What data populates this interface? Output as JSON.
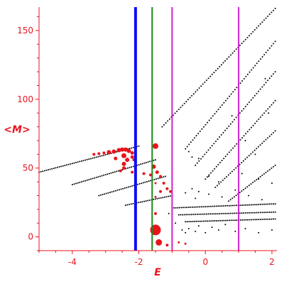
{
  "chart_data": {
    "type": "scatter",
    "xlabel": "E",
    "ylabel": "<M>",
    "xlim": [
      -5.0,
      2.15
    ],
    "ylim": [
      -10,
      167
    ],
    "x_ticks": [
      {
        "value": -4,
        "label": "-4"
      },
      {
        "value": -2,
        "label": "-2"
      },
      {
        "value": 0,
        "label": "0"
      },
      {
        "value": 2,
        "label": "2"
      }
    ],
    "y_ticks": [
      {
        "value": 0,
        "label": "0"
      },
      {
        "value": 50,
        "label": "50"
      },
      {
        "value": 100,
        "label": "100"
      },
      {
        "value": 150,
        "label": "150"
      }
    ],
    "colors": {
      "axis": "#e8141c",
      "black_series": "#000000",
      "red_series": "#e8141c",
      "blue_line": "#1010ee",
      "green_line": "#1a8a1a",
      "magenta_line": "#d020d0"
    },
    "bands": [
      {
        "x": [
          -5.0,
          -2.0
        ],
        "y": [
          47,
          66
        ]
      },
      {
        "x": [
          -4.0,
          -1.5
        ],
        "y": [
          38,
          56
        ]
      },
      {
        "x": [
          -3.2,
          -1.2
        ],
        "y": [
          30,
          44
        ]
      },
      {
        "x": [
          -2.4,
          -1.0
        ],
        "y": [
          23,
          30
        ]
      },
      {
        "x": [
          -1.3,
          2.1
        ],
        "y": [
          80,
          166
        ]
      },
      {
        "x": [
          -0.6,
          2.1
        ],
        "y": [
          64,
          142
        ]
      },
      {
        "x": [
          -0.3,
          2.1
        ],
        "y": [
          52,
          120
        ]
      },
      {
        "x": [
          0.0,
          2.1
        ],
        "y": [
          42,
          99
        ]
      },
      {
        "x": [
          0.3,
          2.1
        ],
        "y": [
          36,
          77
        ]
      },
      {
        "x": [
          0.7,
          2.1
        ],
        "y": [
          26,
          52
        ]
      },
      {
        "x": [
          -1.0,
          2.1
        ],
        "y": [
          21,
          24
        ]
      },
      {
        "x": [
          -0.8,
          2.1
        ],
        "y": [
          16,
          18
        ]
      },
      {
        "x": [
          -0.6,
          2.1
        ],
        "y": [
          11,
          13
        ]
      }
    ],
    "scattered_points": [
      [
        -1.1,
        17
      ],
      [
        -0.9,
        10
      ],
      [
        -0.7,
        5
      ],
      [
        -0.6,
        3
      ],
      [
        -0.5,
        6
      ],
      [
        -0.3,
        4
      ],
      [
        -0.2,
        8
      ],
      [
        0.0,
        3
      ],
      [
        0.2,
        7
      ],
      [
        0.4,
        5
      ],
      [
        0.6,
        9
      ],
      [
        0.9,
        4
      ],
      [
        1.2,
        6
      ],
      [
        1.6,
        3
      ],
      [
        2.0,
        5
      ],
      [
        -0.6,
        32
      ],
      [
        -0.4,
        35
      ],
      [
        -0.3,
        28
      ],
      [
        -0.2,
        33
      ],
      [
        0.1,
        31
      ],
      [
        0.5,
        29
      ],
      [
        0.9,
        34
      ],
      [
        1.3,
        30
      ],
      [
        1.7,
        27
      ],
      [
        -0.5,
        62
      ],
      [
        -0.4,
        58
      ],
      [
        0.1,
        44
      ],
      [
        0.4,
        40
      ],
      [
        1.1,
        46
      ],
      [
        1.6,
        42
      ],
      [
        2.0,
        39
      ],
      [
        1.5,
        60
      ],
      [
        1.2,
        70
      ],
      [
        1.8,
        115
      ],
      [
        1.9,
        90
      ],
      [
        1.0,
        75
      ],
      [
        0.8,
        88
      ],
      [
        -0.2,
        57
      ]
    ],
    "red_points": [
      {
        "x": -2.75,
        "y": 62,
        "size": 3
      },
      {
        "x": -2.6,
        "y": 63,
        "size": 3
      },
      {
        "x": -2.5,
        "y": 63.5,
        "size": 3
      },
      {
        "x": -2.4,
        "y": 63.5,
        "size": 3
      },
      {
        "x": -2.3,
        "y": 62.5,
        "size": 3
      },
      {
        "x": -2.9,
        "y": 61.5,
        "size": 3
      },
      {
        "x": -3.05,
        "y": 61,
        "size": 2
      },
      {
        "x": -3.2,
        "y": 60.5,
        "size": 2
      },
      {
        "x": -3.35,
        "y": 60,
        "size": 2
      },
      {
        "x": -2.2,
        "y": 61,
        "size": 2.5
      },
      {
        "x": -2.15,
        "y": 56,
        "size": 2
      },
      {
        "x": -2.45,
        "y": 59,
        "size": 3.5
      },
      {
        "x": -2.35,
        "y": 56,
        "size": 3
      },
      {
        "x": -2.2,
        "y": 58,
        "size": 2.5
      },
      {
        "x": -2.7,
        "y": 57,
        "size": 2.5
      },
      {
        "x": -2.45,
        "y": 53,
        "size": 3
      },
      {
        "x": -2.45,
        "y": 50,
        "size": 2.5
      },
      {
        "x": -2.55,
        "y": 48,
        "size": 2
      },
      {
        "x": -2.2,
        "y": 47,
        "size": 2
      },
      {
        "x": -1.85,
        "y": 46,
        "size": 2
      },
      {
        "x": -1.65,
        "y": 45,
        "size": 2
      },
      {
        "x": -1.55,
        "y": 51,
        "size": 3
      },
      {
        "x": -1.45,
        "y": 47,
        "size": 2.5
      },
      {
        "x": -1.35,
        "y": 44,
        "size": 2
      },
      {
        "x": -1.25,
        "y": 39,
        "size": 2
      },
      {
        "x": -1.15,
        "y": 35,
        "size": 2
      },
      {
        "x": -1.35,
        "y": 33,
        "size": 2
      },
      {
        "x": -1.05,
        "y": 33,
        "size": 2
      },
      {
        "x": -1.5,
        "y": 66,
        "size": 4
      },
      {
        "x": -1.5,
        "y": 39,
        "size": 1.5
      },
      {
        "x": -1.5,
        "y": 29,
        "size": 1.5
      },
      {
        "x": -1.5,
        "y": 17,
        "size": 2
      },
      {
        "x": -1.5,
        "y": 5,
        "size": 7.5
      },
      {
        "x": -1.4,
        "y": -4,
        "size": 4.5
      },
      {
        "x": -1.15,
        "y": -6,
        "size": 2
      },
      {
        "x": -0.8,
        "y": -4,
        "size": 1.5
      },
      {
        "x": -0.6,
        "y": -5,
        "size": 1.5
      }
    ],
    "vertical_lines": [
      {
        "x": -2.1,
        "color": "#1010ee",
        "width": 4
      },
      {
        "x": -1.6,
        "color": "#1a8a1a",
        "width": 2
      },
      {
        "x": -1.0,
        "color": "#d020d0",
        "width": 2
      },
      {
        "x": 1.0,
        "color": "#d020d0",
        "width": 2
      }
    ],
    "grid": false
  }
}
